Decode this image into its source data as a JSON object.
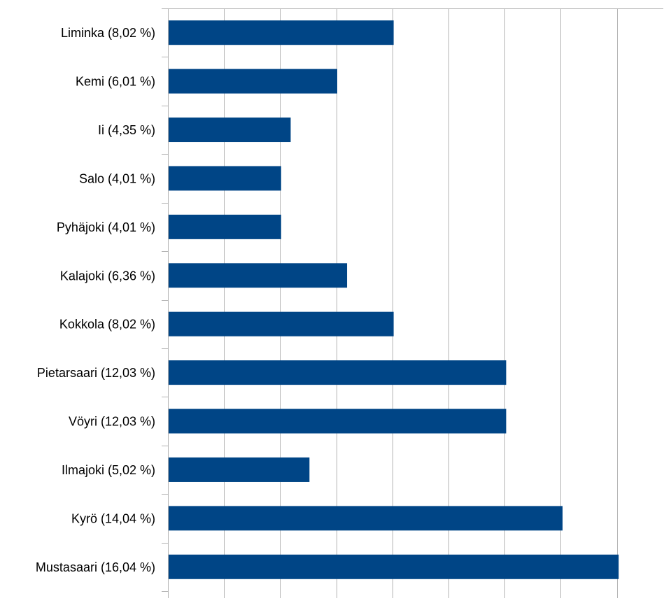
{
  "chart_data": {
    "type": "bar",
    "orientation": "horizontal",
    "categories": [
      "Liminka (8,02 %)",
      "Kemi (6,01 %)",
      "Ii (4,35 %)",
      "Salo (4,01 %)",
      "Pyhäjoki (4,01 %)",
      "Kalajoki (6,36 %)",
      "Kokkola (8,02 %)",
      "Pietarsaari (12,03 %)",
      "Vöyri (12,03 %)",
      "Ilmajoki (5,02 %)",
      "Kyrö (14,04 %)",
      "Mustasaari (16,04 %)"
    ],
    "values": [
      8.02,
      6.01,
      4.35,
      4.01,
      4.01,
      6.36,
      8.02,
      12.03,
      12.03,
      5.02,
      14.04,
      16.04
    ],
    "xlim": [
      0,
      17.5
    ],
    "x_gridline_step": 2,
    "x_tick_labels_shown": false,
    "grid": true,
    "legend": "none",
    "colors": {
      "bar": "#004586",
      "grid": "#b3b3b3",
      "axis": "#b3b3b3",
      "text": "#000000"
    }
  }
}
